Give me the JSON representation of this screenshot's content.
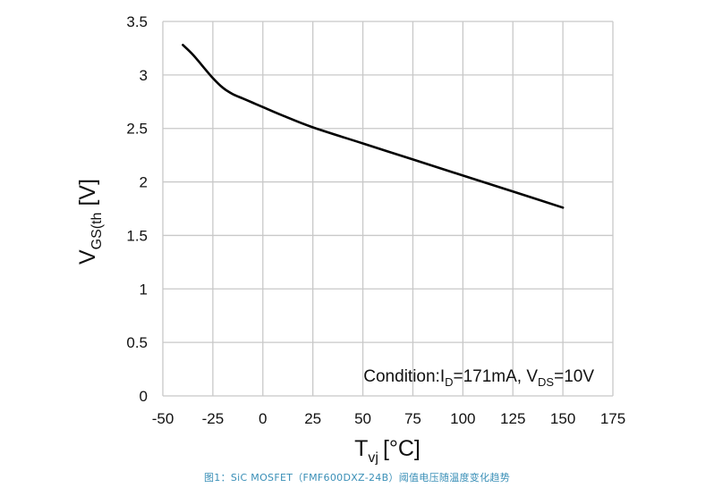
{
  "chart_data": {
    "type": "line",
    "xlim": [
      -50,
      175
    ],
    "ylim": [
      0,
      3.5
    ],
    "x_ticks": [
      "-50",
      "-25",
      "0",
      "25",
      "50",
      "75",
      "100",
      "125",
      "150",
      "175"
    ],
    "y_ticks": [
      "0",
      "0.5",
      "1",
      "1.5",
      "2",
      "2.5",
      "3",
      "3.5"
    ],
    "grid": true,
    "xlabel": {
      "main": "T",
      "sub": "vj",
      "unit": "[°C]"
    },
    "ylabel": {
      "main": "V",
      "sub": "GS(th",
      "unit": "[V]"
    },
    "annotation": {
      "prefix": "Condition:I",
      "sub1": "D",
      "mid": "=171mA, V",
      "sub2": "DS",
      "suffix": "=10V"
    },
    "series": [
      {
        "x": [
          -40,
          -35,
          -30,
          -25,
          -20,
          -15,
          -10,
          -5,
          0,
          10,
          25,
          50,
          75,
          100,
          125,
          150
        ],
        "y": [
          3.28,
          3.19,
          3.08,
          2.97,
          2.88,
          2.82,
          2.78,
          2.74,
          2.7,
          2.62,
          2.51,
          2.36,
          2.21,
          2.06,
          1.91,
          1.76
        ]
      }
    ],
    "line_color": "#000000",
    "grid_color": "#c8c8c8"
  },
  "caption": "图1：SiC MOSFET（FMF600DXZ-24B）阈值电压随温度变化趋势"
}
